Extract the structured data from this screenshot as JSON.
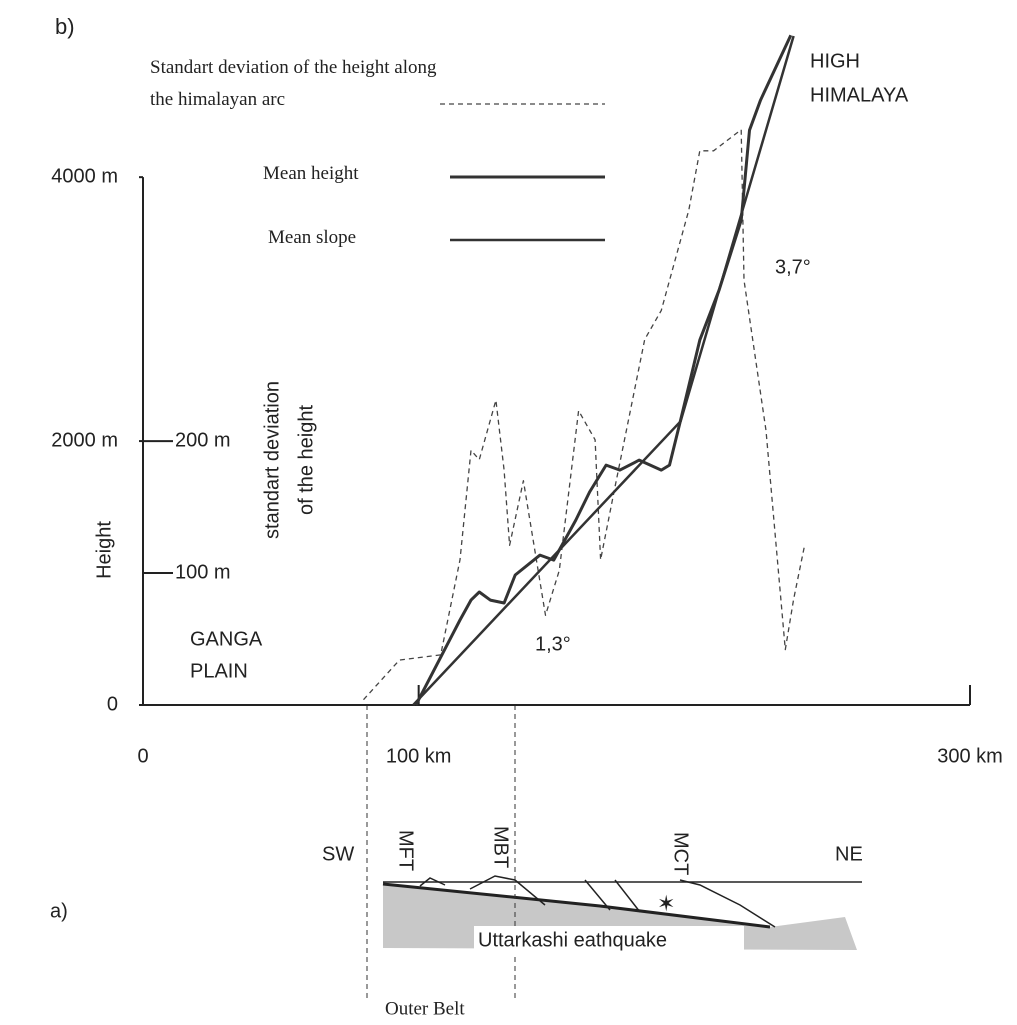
{
  "chart_data": {
    "type": "line",
    "title": "b)",
    "ylabel": "Height",
    "y2label": [
      "standart deviation",
      "of the height"
    ],
    "xlim": [
      0,
      300
    ],
    "xticks": [
      0,
      {
        "value": 100,
        "label": "100 km"
      },
      {
        "value": 300,
        "label": "300 km"
      }
    ],
    "ylim": [
      0,
      5100
    ],
    "yticks": [
      0,
      {
        "value": 2000,
        "label": "2000 m"
      },
      {
        "value": 4000,
        "label": "4000 m"
      }
    ],
    "y2lim": [
      0,
      510
    ],
    "y2ticks": [
      {
        "value": 100,
        "label": "100 m"
      },
      {
        "value": 200,
        "label": "200 m"
      }
    ],
    "series": [
      {
        "name": "Standart deviation of the height along the himalayan arc",
        "color": "#444",
        "axis": "y2",
        "x": [
          80,
          93,
          108,
          115,
          119,
          122,
          128,
          131,
          133,
          138,
          146,
          151,
          158,
          164,
          166,
          171,
          182,
          188,
          198,
          202,
          207,
          217,
          218,
          226,
          233,
          236,
          240
        ],
        "values": [
          4,
          34,
          38,
          110,
          193,
          186,
          231,
          178,
          121,
          170,
          68,
          102,
          223,
          201,
          110,
          163,
          277,
          299,
          375,
          420,
          420,
          436,
          322,
          208,
          42,
          80,
          121
        ]
      },
      {
        "name": "Mean height",
        "color": "#333",
        "x": [
          99,
          115,
          119,
          122,
          126,
          131,
          135,
          144,
          149,
          157,
          162,
          168,
          173,
          180,
          188,
          191,
          195,
          202,
          209,
          217,
          220,
          224,
          235
        ],
        "values": [
          0,
          644,
          795,
          856,
          795,
          773,
          985,
          1136,
          1098,
          1401,
          1614,
          1818,
          1780,
          1856,
          1780,
          1818,
          2159,
          2765,
          3144,
          3674,
          4356,
          4583,
          5076
        ]
      },
      {
        "name": "Mean slope",
        "color": "#333",
        "x": [
          98,
          195,
          236
        ],
        "values": [
          0,
          2150,
          5070
        ]
      }
    ],
    "annotations": [
      "HIGH",
      "HIMALAYA",
      "3,7°",
      "1,3°",
      "GANGA",
      "PLAIN"
    ]
  },
  "section": {
    "label": "a)",
    "left": "SW",
    "right": "NE",
    "faults": [
      "MFT",
      "MBT",
      "MCT"
    ],
    "event": "Uttarkashi eathquake",
    "zone": "Outer Belt"
  }
}
